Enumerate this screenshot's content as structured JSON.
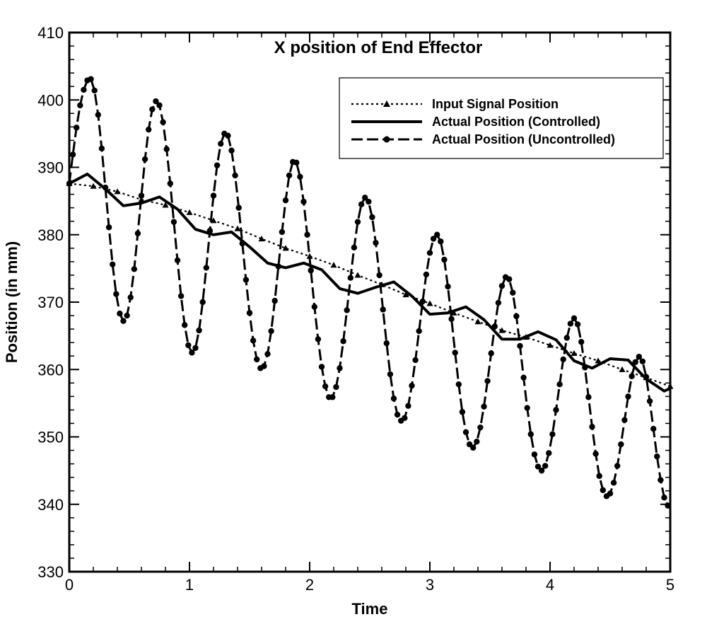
{
  "chart_data": {
    "type": "line",
    "title": "X position of End Effector",
    "xlabel": "Time",
    "ylabel": "Position (in mm)",
    "xlim": [
      0,
      5
    ],
    "ylim": [
      330,
      410
    ],
    "xticks": [
      "0",
      "1",
      "2",
      "3",
      "4",
      "5"
    ],
    "yticks": [
      "330",
      "340",
      "350",
      "360",
      "370",
      "380",
      "390",
      "400",
      "410"
    ],
    "legend_position": "top-right",
    "grid": false,
    "series": [
      {
        "name": "Input Signal Position",
        "style": "dotted",
        "marker": "triangle",
        "x": [
          0,
          0.2,
          0.4,
          0.6,
          0.8,
          1.0,
          1.2,
          1.4,
          1.6,
          1.8,
          2.0,
          2.2,
          2.4,
          2.6,
          2.8,
          3.0,
          3.2,
          3.4,
          3.6,
          3.8,
          4.0,
          4.2,
          4.4,
          4.6,
          4.8,
          5.0
        ],
        "y": [
          387.6,
          387.2,
          386.4,
          385.2,
          384.4,
          383.3,
          382.1,
          380.9,
          379.4,
          378.0,
          376.8,
          375.5,
          374.0,
          372.6,
          371.1,
          369.8,
          368.4,
          367.1,
          365.8,
          364.8,
          363.6,
          362.4,
          361.3,
          360.0,
          358.8,
          357.5
        ]
      },
      {
        "name": "Actual Position (Controlled)",
        "style": "solid",
        "marker": "none",
        "x": [
          0,
          0.15,
          0.3,
          0.45,
          0.6,
          0.75,
          0.9,
          1.05,
          1.2,
          1.35,
          1.5,
          1.65,
          1.8,
          1.95,
          2.1,
          2.25,
          2.4,
          2.55,
          2.7,
          2.85,
          3.0,
          3.15,
          3.3,
          3.45,
          3.6,
          3.75,
          3.9,
          4.05,
          4.2,
          4.35,
          4.5,
          4.65,
          4.8,
          4.95,
          5.0
        ],
        "y": [
          387.6,
          389.0,
          386.8,
          384.3,
          384.7,
          385.6,
          383.8,
          380.8,
          380.0,
          380.4,
          378.2,
          375.8,
          375.1,
          375.8,
          374.8,
          372.0,
          371.3,
          372.2,
          373.0,
          370.9,
          368.2,
          368.4,
          369.3,
          367.4,
          364.5,
          364.5,
          365.6,
          364.4,
          361.3,
          360.2,
          361.6,
          361.4,
          358.6,
          356.8,
          357.2
        ]
      },
      {
        "name": "Actual Position (Uncontrolled)",
        "style": "dashed",
        "marker": "circle",
        "x": [
          0,
          0.03,
          0.06,
          0.09,
          0.12,
          0.15,
          0.18,
          0.21,
          0.24,
          0.27,
          0.3,
          0.33,
          0.36,
          0.39,
          0.42,
          0.45,
          0.48,
          0.51,
          0.54,
          0.57,
          0.6,
          0.63,
          0.66,
          0.69,
          0.72,
          0.75,
          0.78,
          0.81,
          0.84,
          0.87,
          0.9,
          0.93,
          0.96,
          0.99,
          1.02,
          1.05,
          1.08,
          1.11,
          1.14,
          1.17,
          1.2,
          1.23,
          1.26,
          1.29,
          1.32,
          1.35,
          1.38,
          1.41,
          1.44,
          1.47,
          1.5,
          1.53,
          1.56,
          1.59,
          1.62,
          1.65,
          1.68,
          1.71,
          1.74,
          1.77,
          1.8,
          1.83,
          1.86,
          1.89,
          1.92,
          1.95,
          1.98,
          2.01,
          2.04,
          2.07,
          2.1,
          2.13,
          2.16,
          2.19,
          2.22,
          2.25,
          2.28,
          2.31,
          2.34,
          2.37,
          2.4,
          2.43,
          2.46,
          2.49,
          2.52,
          2.55,
          2.58,
          2.61,
          2.64,
          2.67,
          2.7,
          2.73,
          2.76,
          2.79,
          2.82,
          2.85,
          2.88,
          2.91,
          2.94,
          2.97,
          3.0,
          3.03,
          3.06,
          3.09,
          3.12,
          3.15,
          3.18,
          3.21,
          3.24,
          3.27,
          3.3,
          3.33,
          3.36,
          3.39,
          3.42,
          3.45,
          3.48,
          3.51,
          3.54,
          3.57,
          3.6,
          3.63,
          3.66,
          3.69,
          3.72,
          3.75,
          3.78,
          3.81,
          3.84,
          3.87,
          3.9,
          3.93,
          3.96,
          3.99,
          4.02,
          4.05,
          4.08,
          4.11,
          4.14,
          4.17,
          4.2,
          4.23,
          4.26,
          4.29,
          4.32,
          4.35,
          4.38,
          4.41,
          4.44,
          4.47,
          4.5,
          4.53,
          4.56,
          4.59,
          4.62,
          4.65,
          4.68,
          4.71,
          4.74,
          4.77,
          4.8,
          4.83,
          4.86,
          4.89,
          4.92,
          4.95,
          4.98
        ],
        "y": [
          387.6,
          391.9,
          395.9,
          399.2,
          401.5,
          402.9,
          403.1,
          401.4,
          397.8,
          392.8,
          387.0,
          381.1,
          375.6,
          371.2,
          368.3,
          367.2,
          368.0,
          370.7,
          374.9,
          380.2,
          385.8,
          391.2,
          395.6,
          398.6,
          399.8,
          399.2,
          396.7,
          392.7,
          387.6,
          381.9,
          376.2,
          370.9,
          366.6,
          363.6,
          362.5,
          363.2,
          365.8,
          370.0,
          375.1,
          380.6,
          385.8,
          390.3,
          393.5,
          395.0,
          394.7,
          392.5,
          388.8,
          384.0,
          378.7,
          373.3,
          368.4,
          364.3,
          361.5,
          360.2,
          360.5,
          362.3,
          365.7,
          370.2,
          375.3,
          380.4,
          385.1,
          388.8,
          390.8,
          390.7,
          388.6,
          384.9,
          380.0,
          374.7,
          369.3,
          364.5,
          360.4,
          357.5,
          355.9,
          355.9,
          357.4,
          360.2,
          364.2,
          368.8,
          373.6,
          378.1,
          381.9,
          384.5,
          385.5,
          384.9,
          382.6,
          378.8,
          374.0,
          368.9,
          363.9,
          359.3,
          355.7,
          353.3,
          352.4,
          352.8,
          354.6,
          357.6,
          361.4,
          365.7,
          370.1,
          374.1,
          377.3,
          379.4,
          380.0,
          379.0,
          376.3,
          372.3,
          367.5,
          362.5,
          357.8,
          353.7,
          350.7,
          348.9,
          348.4,
          349.3,
          351.4,
          354.5,
          358.3,
          362.4,
          366.4,
          369.9,
          372.4,
          373.7,
          373.4,
          371.4,
          367.9,
          363.5,
          358.8,
          354.3,
          350.4,
          347.4,
          345.6,
          345.0,
          345.7,
          347.6,
          350.4,
          354.0,
          357.8,
          361.5,
          364.7,
          366.8,
          367.6,
          366.7,
          364.1,
          360.3,
          355.9,
          351.5,
          347.5,
          344.2,
          342.1,
          341.2,
          341.6,
          343.2,
          345.7,
          348.9,
          352.5,
          356.0,
          359.0,
          361.1,
          361.9,
          361.2,
          358.9,
          355.3,
          351.2,
          347.1,
          343.6,
          341.0,
          339.8
        ]
      }
    ]
  }
}
